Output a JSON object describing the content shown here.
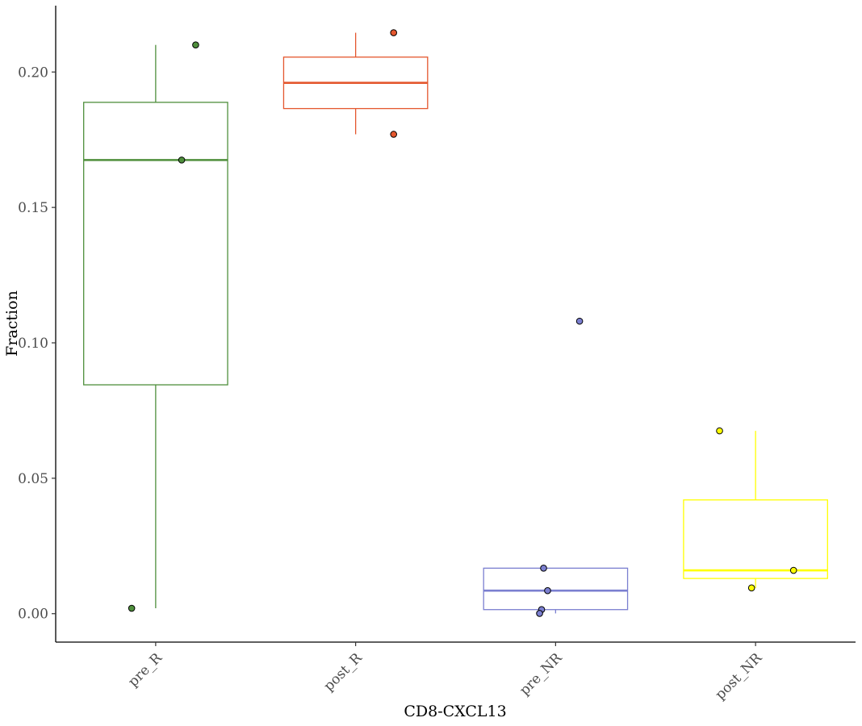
{
  "chart_data": {
    "type": "boxplot",
    "xlabel": "CD8-CXCL13",
    "ylabel": "Fraction",
    "ylim": [
      -0.0105,
      0.2245
    ],
    "yticks": [
      0.0,
      0.05,
      0.1,
      0.15,
      0.2
    ],
    "ytick_labels": [
      "0.00",
      "0.05",
      "0.10",
      "0.15",
      "0.20"
    ],
    "categories": [
      "pre_R",
      "post_R",
      "pre_NR",
      "post_NR"
    ],
    "groups": [
      {
        "name": "pre_R",
        "color": "#4f8f3c",
        "min": 0.002,
        "q1": 0.0845,
        "median": 0.1675,
        "q3": 0.1888,
        "max": 0.21,
        "points": [
          {
            "x_offset": 0.2,
            "y": 0.21
          },
          {
            "x_offset": 0.13,
            "y": 0.1675
          },
          {
            "x_offset": -0.12,
            "y": 0.002
          }
        ]
      },
      {
        "name": "post_R",
        "color": "#e4572e",
        "min": 0.177,
        "q1": 0.1865,
        "median": 0.196,
        "q3": 0.2055,
        "max": 0.2145,
        "points": [
          {
            "x_offset": 0.19,
            "y": 0.2145
          },
          {
            "x_offset": 0.19,
            "y": 0.177
          }
        ]
      },
      {
        "name": "pre_NR",
        "color": "#7b7fd0",
        "min": 0.0001,
        "q1": 0.0015,
        "median": 0.0085,
        "q3": 0.0168,
        "max": 0.0168,
        "points": [
          {
            "x_offset": 0.12,
            "y": 0.108
          },
          {
            "x_offset": -0.06,
            "y": 0.0168
          },
          {
            "x_offset": -0.04,
            "y": 0.0085
          },
          {
            "x_offset": -0.07,
            "y": 0.0015
          },
          {
            "x_offset": -0.08,
            "y": 0.0001
          }
        ]
      },
      {
        "name": "post_NR",
        "color": "#ffff00",
        "min": 0.0095,
        "q1": 0.013,
        "median": 0.016,
        "q3": 0.042,
        "max": 0.0675,
        "points": [
          {
            "x_offset": -0.18,
            "y": 0.0675
          },
          {
            "x_offset": 0.19,
            "y": 0.016
          },
          {
            "x_offset": -0.02,
            "y": 0.0095
          }
        ]
      }
    ]
  }
}
